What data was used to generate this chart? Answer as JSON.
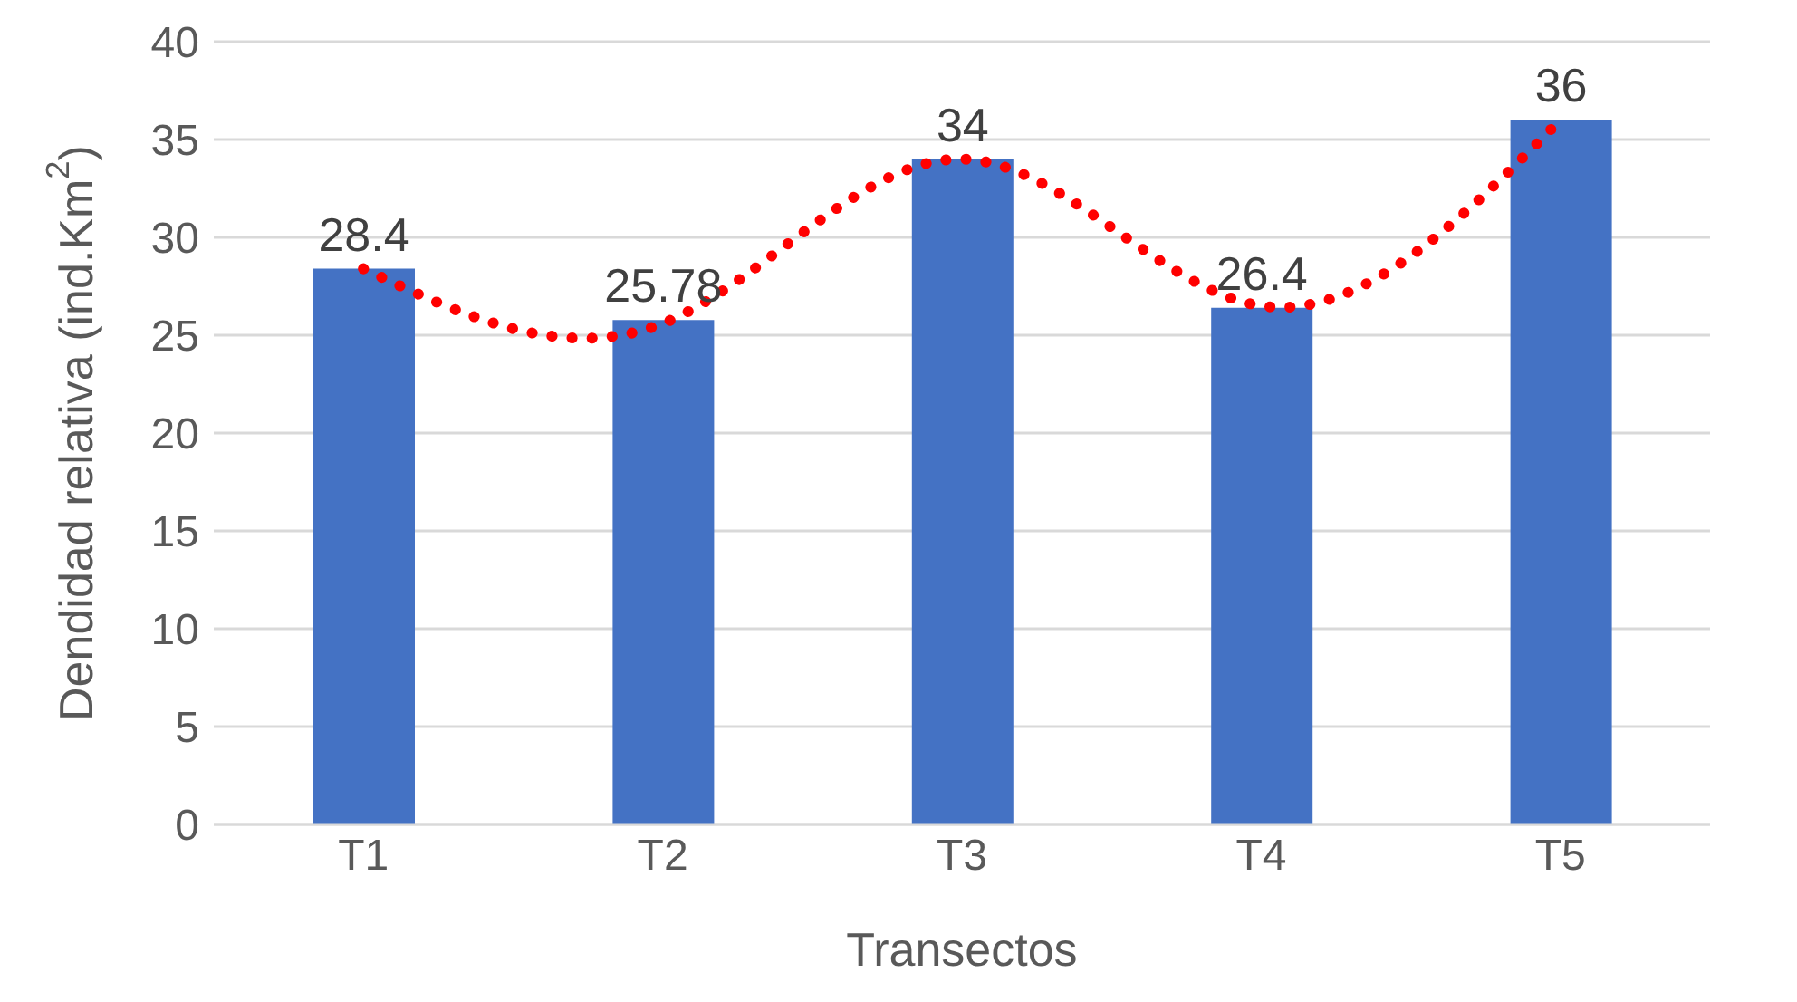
{
  "chart_data": {
    "type": "bar",
    "xlabel": "Transectos",
    "ylabel": "Dendidad relativa (ind.Km$^{2}$)",
    "categories": [
      "T1",
      "T2",
      "T3",
      "T4",
      "T5"
    ],
    "series": [
      {
        "values": [
          28.4,
          25.78,
          34,
          26.4,
          36
        ],
        "color": "#4472c4",
        "value_labels": [
          "28.4",
          "25.78",
          "34",
          "26.4",
          "36"
        ]
      },
      {
        "type": "line",
        "values": [
          28.4,
          25.6,
          34,
          26.5,
          36
        ],
        "color": "#ff0000",
        "line_style": "dotted",
        "marker": "none"
      }
    ],
    "ylim": [
      0,
      40
    ],
    "yticks": [
      0,
      5,
      10,
      15,
      20,
      25,
      30,
      35,
      40
    ],
    "grid": "y",
    "legend": false
  }
}
